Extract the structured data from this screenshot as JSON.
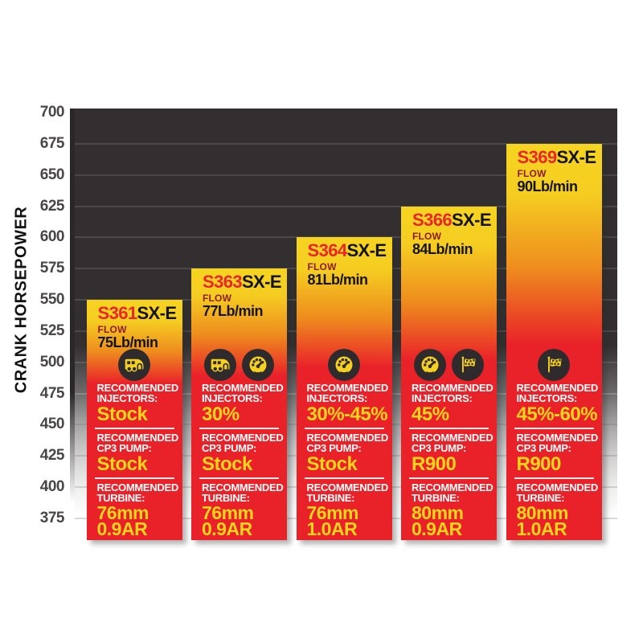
{
  "chart_data": {
    "type": "bar",
    "title": "",
    "ylabel": "CRANK HORSEPOWER",
    "axis": {
      "min": 375,
      "max": 700,
      "tick_step": 25,
      "ticks": [
        700,
        675,
        650,
        625,
        600,
        575,
        550,
        525,
        500,
        475,
        450,
        425,
        400,
        375
      ],
      "grid": true
    },
    "categories": [
      "S361SX-E",
      "S363SX-E",
      "S364SX-E",
      "S366SX-E",
      "S369SX-E"
    ],
    "values_crank_hp": [
      550,
      575,
      600,
      625,
      675
    ],
    "bars": [
      {
        "model_prefix": "S361",
        "model_suffix": "SX-E",
        "flow_label": "FLOW",
        "flow_value": "75Lb/min",
        "top_hp": 550,
        "icons": [
          "rv-icon"
        ],
        "injectors_value": "Stock",
        "cp3_value": "Stock",
        "turbine_size": "76mm",
        "turbine_ar": "0.9AR"
      },
      {
        "model_prefix": "S363",
        "model_suffix": "SX-E",
        "flow_label": "FLOW",
        "flow_value": "77Lb/min",
        "top_hp": 575,
        "icons": [
          "rv-icon",
          "gauge-icon"
        ],
        "injectors_value": "30%",
        "cp3_value": "Stock",
        "turbine_size": "76mm",
        "turbine_ar": "0.9AR"
      },
      {
        "model_prefix": "S364",
        "model_suffix": "SX-E",
        "flow_label": "FLOW",
        "flow_value": "81Lb/min",
        "top_hp": 600,
        "icons": [
          "gauge-icon"
        ],
        "injectors_value": "30%-45%",
        "cp3_value": "Stock",
        "turbine_size": "76mm",
        "turbine_ar": "1.0AR"
      },
      {
        "model_prefix": "S366",
        "model_suffix": "SX-E",
        "flow_label": "FLOW",
        "flow_value": "84Lb/min",
        "top_hp": 625,
        "icons": [
          "gauge-icon",
          "flag-icon"
        ],
        "injectors_value": "45%",
        "cp3_value": "R900",
        "turbine_size": "80mm",
        "turbine_ar": "0.9AR"
      },
      {
        "model_prefix": "S369",
        "model_suffix": "SX-E",
        "flow_label": "FLOW",
        "flow_value": "90Lb/min",
        "top_hp": 675,
        "icons": [
          "flag-icon"
        ],
        "injectors_value": "45%-60%",
        "cp3_value": "R900",
        "turbine_size": "80mm",
        "turbine_ar": "1.0AR"
      }
    ]
  },
  "section_labels": {
    "recommended": "RECOMMENDED",
    "injectors": "INJECTORS:",
    "cp3_pump": "CP3 PUMP:",
    "turbine": "TURBINE:"
  },
  "colors": {
    "bar_gradient_yellow": "#f6d421",
    "bar_gradient_orange": "#ee8c1e",
    "bar_gradient_red": "#e92129",
    "value_yellow": "#ffd51c",
    "model_number_red": "#e9262c",
    "flow_label_maroon": "#8e1b1e",
    "plot_background_dark": "#332f30",
    "icon_circle_dark": "#2f2b2c",
    "axis_text": "#4a4546",
    "divider_white": "#ffffff"
  }
}
